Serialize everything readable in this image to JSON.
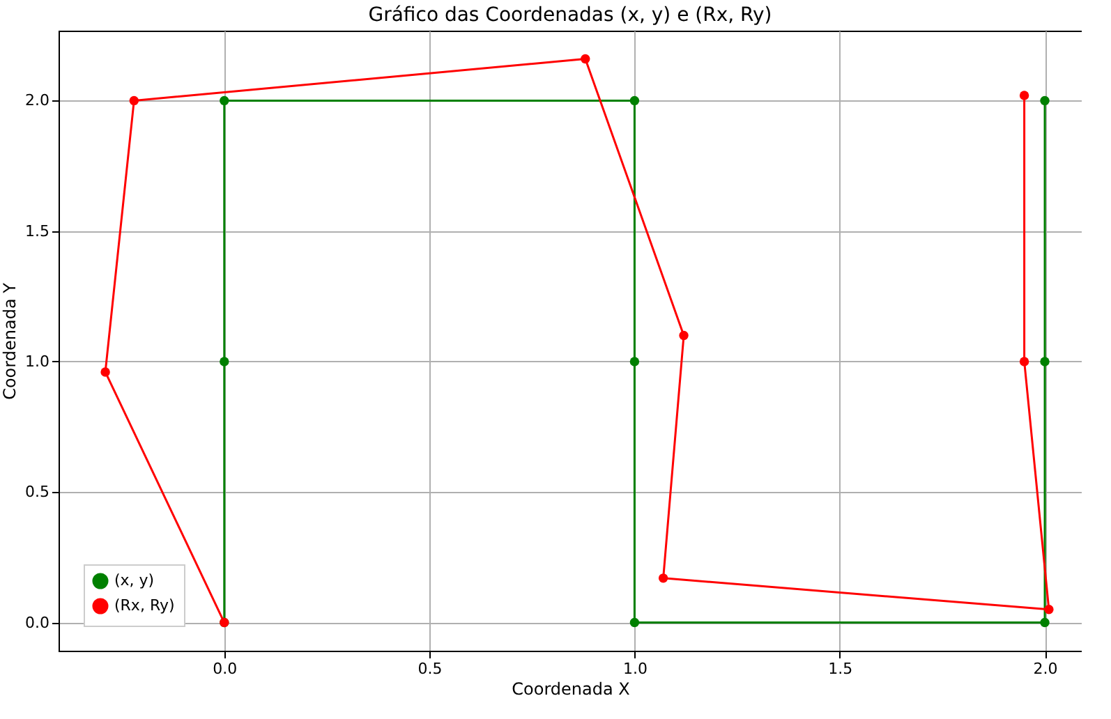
{
  "chart_data": {
    "type": "line",
    "title": "Gráfico das Coordenadas (x, y) e (Rx, Ry)",
    "xlabel": "Coordenada X",
    "ylabel": "Coordenada Y",
    "series": [
      {
        "name": "(x, y)",
        "color": "#008000",
        "x": [
          0,
          0,
          0,
          1,
          1,
          1,
          2,
          2,
          2
        ],
        "values": [
          0,
          1,
          2,
          2,
          1,
          0,
          0,
          1,
          2
        ]
      },
      {
        "name": "(Rx, Ry)",
        "color": "#ff0000",
        "x": [
          0,
          -0.29,
          -0.22,
          0.88,
          1.12,
          1.07,
          2.01,
          1.95,
          1.95
        ],
        "values": [
          0,
          0.96,
          2.0,
          2.16,
          1.1,
          0.17,
          0.05,
          1.0,
          2.02
        ]
      }
    ],
    "xlim": [
      -0.404,
      2.09
    ],
    "ylim": [
      -0.108,
      2.268
    ],
    "xticks": [
      {
        "value": 0,
        "label": "0.0"
      },
      {
        "value": 0.5,
        "label": "0.5"
      },
      {
        "value": 1,
        "label": "1.0"
      },
      {
        "value": 1.5,
        "label": "1.5"
      },
      {
        "value": 2,
        "label": "2.0"
      }
    ],
    "yticks": [
      {
        "value": 0,
        "label": "0.0"
      },
      {
        "value": 0.5,
        "label": "0.5"
      },
      {
        "value": 1,
        "label": "1.0"
      },
      {
        "value": 1.5,
        "label": "1.5"
      },
      {
        "value": 2,
        "label": "2.0"
      }
    ],
    "grid": true,
    "legend": "bottom left",
    "marker": "circle",
    "line_style": "solid"
  }
}
